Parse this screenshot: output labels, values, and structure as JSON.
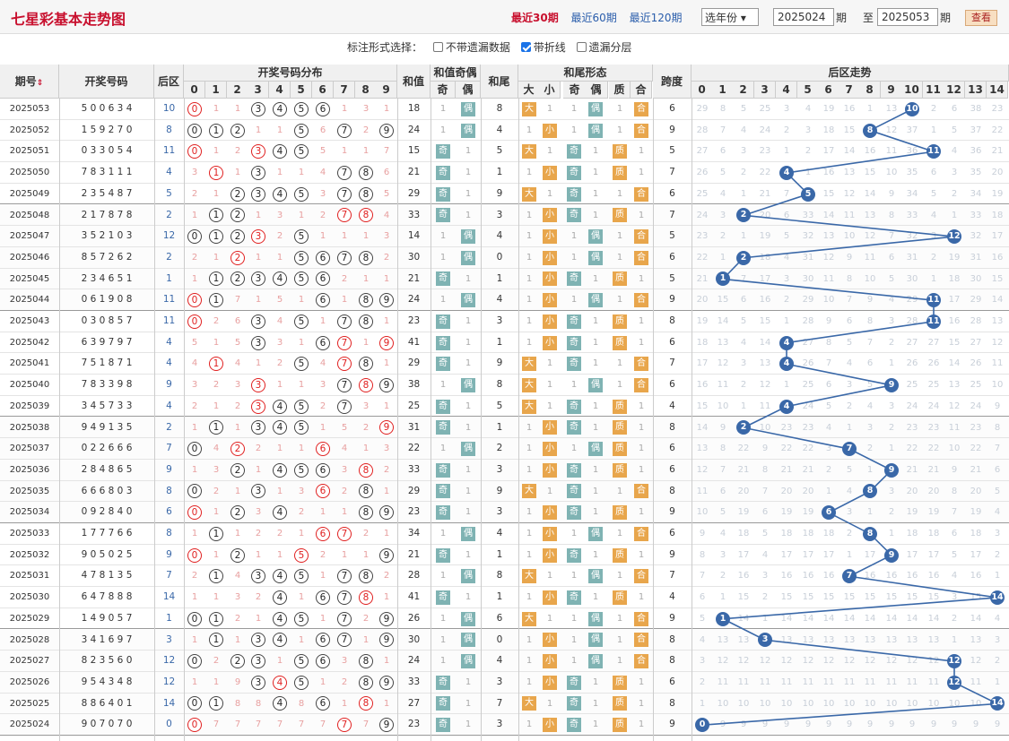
{
  "title": "七星彩基本走势图",
  "nav": {
    "r30": "最近30期",
    "r60": "最近60期",
    "r120": "最近120期"
  },
  "year_select": "选年份",
  "range": {
    "from": "2025024",
    "from_unit": "期",
    "to_label": "至",
    "to": "2025053",
    "to_unit": "期",
    "query_label": "查看"
  },
  "options": {
    "label": "标注形式选择：",
    "o1": "不带遗漏数据",
    "o2": "带折线",
    "o3": "遗漏分层",
    "o2_checked": true
  },
  "headers": {
    "period": "期号",
    "draw": "开奖号码",
    "back": "后区",
    "dist": "开奖号码分布",
    "sum": "和值",
    "sum_oe": "和值奇偶",
    "odd": "奇",
    "even": "偶",
    "tail": "和尾",
    "tail_shape": "和尾形态",
    "big": "大",
    "small": "小",
    "odd2": "奇",
    "even2": "偶",
    "prime": "质",
    "comp": "合",
    "span": "跨度",
    "back_trend": "后区走势"
  },
  "digits": [
    "0",
    "1",
    "2",
    "3",
    "4",
    "5",
    "6",
    "7",
    "8",
    "9"
  ],
  "back_nums": [
    "0",
    "1",
    "2",
    "3",
    "4",
    "5",
    "6",
    "7",
    "8",
    "9",
    "10",
    "11",
    "12",
    "13",
    "14"
  ],
  "colors": {
    "red": "#e02020",
    "blue": "#3a68a8",
    "tagOrange": "#e8a64c",
    "tagTeal": "#7fb3b3"
  },
  "rows": [
    {
      "p": "2025053",
      "d": [
        5,
        0,
        0,
        6,
        3,
        4
      ],
      "b": 10
    },
    {
      "p": "2025052",
      "d": [
        1,
        5,
        9,
        2,
        7,
        0
      ],
      "b": 8
    },
    {
      "p": "2025051",
      "d": [
        0,
        3,
        3,
        0,
        5,
        4
      ],
      "b": 11
    },
    {
      "p": "2025050",
      "d": [
        7,
        8,
        3,
        1,
        1,
        1
      ],
      "b": 4
    },
    {
      "p": "2025049",
      "d": [
        2,
        3,
        5,
        4,
        8,
        7
      ],
      "b": 5
    },
    {
      "p": "2025048",
      "d": [
        2,
        1,
        7,
        8,
        7,
        8
      ],
      "b": 2
    },
    {
      "p": "2025047",
      "d": [
        3,
        5,
        2,
        1,
        0,
        3
      ],
      "b": 12
    },
    {
      "p": "2025046",
      "d": [
        8,
        5,
        7,
        2,
        6,
        2
      ],
      "b": 2
    },
    {
      "p": "2025045",
      "d": [
        2,
        3,
        4,
        6,
        5,
        1
      ],
      "b": 1
    },
    {
      "p": "2025044",
      "d": [
        0,
        6,
        1,
        9,
        0,
        8
      ],
      "b": 11
    },
    {
      "p": "2025043",
      "d": [
        0,
        3,
        0,
        8,
        5,
        7
      ],
      "b": 11
    },
    {
      "p": "2025042",
      "d": [
        6,
        3,
        9,
        7,
        9,
        7
      ],
      "b": 4
    },
    {
      "p": "2025041",
      "d": [
        7,
        5,
        1,
        8,
        7,
        1
      ],
      "b": 4
    },
    {
      "p": "2025040",
      "d": [
        7,
        8,
        3,
        3,
        9,
        8
      ],
      "b": 9
    },
    {
      "p": "2025039",
      "d": [
        3,
        4,
        5,
        7,
        3,
        3
      ],
      "b": 4
    },
    {
      "p": "2025038",
      "d": [
        9,
        4,
        9,
        1,
        3,
        5
      ],
      "b": 2
    },
    {
      "p": "2025037",
      "d": [
        0,
        2,
        2,
        6,
        6,
        6
      ],
      "b": 7
    },
    {
      "p": "2025036",
      "d": [
        2,
        8,
        4,
        8,
        6,
        5
      ],
      "b": 9
    },
    {
      "p": "2025035",
      "d": [
        6,
        6,
        6,
        8,
        0,
        3
      ],
      "b": 8
    },
    {
      "p": "2025034",
      "d": [
        0,
        9,
        2,
        8,
        4,
        0
      ],
      "b": 6
    },
    {
      "p": "2025033",
      "d": [
        1,
        7,
        7,
        7,
        6,
        6
      ],
      "b": 8
    },
    {
      "p": "2025032",
      "d": [
        9,
        0,
        5,
        0,
        2,
        5
      ],
      "b": 9
    },
    {
      "p": "2025031",
      "d": [
        4,
        7,
        8,
        1,
        3,
        5
      ],
      "b": 7
    },
    {
      "p": "2025030",
      "d": [
        6,
        4,
        7,
        8,
        8,
        8
      ],
      "b": 14
    },
    {
      "p": "2025029",
      "d": [
        1,
        4,
        9,
        0,
        5,
        7
      ],
      "b": 1
    },
    {
      "p": "2025028",
      "d": [
        3,
        4,
        1,
        6,
        9,
        7
      ],
      "b": 3
    },
    {
      "p": "2025027",
      "d": [
        8,
        2,
        3,
        5,
        6,
        0
      ],
      "b": 12
    },
    {
      "p": "2025026",
      "d": [
        9,
        5,
        4,
        3,
        4,
        8
      ],
      "b": 12
    },
    {
      "p": "2025025",
      "d": [
        8,
        8,
        6,
        4,
        0,
        1
      ],
      "b": 14
    },
    {
      "p": "2025024",
      "d": [
        9,
        0,
        7,
        0,
        7,
        0
      ],
      "b": 0
    }
  ]
}
